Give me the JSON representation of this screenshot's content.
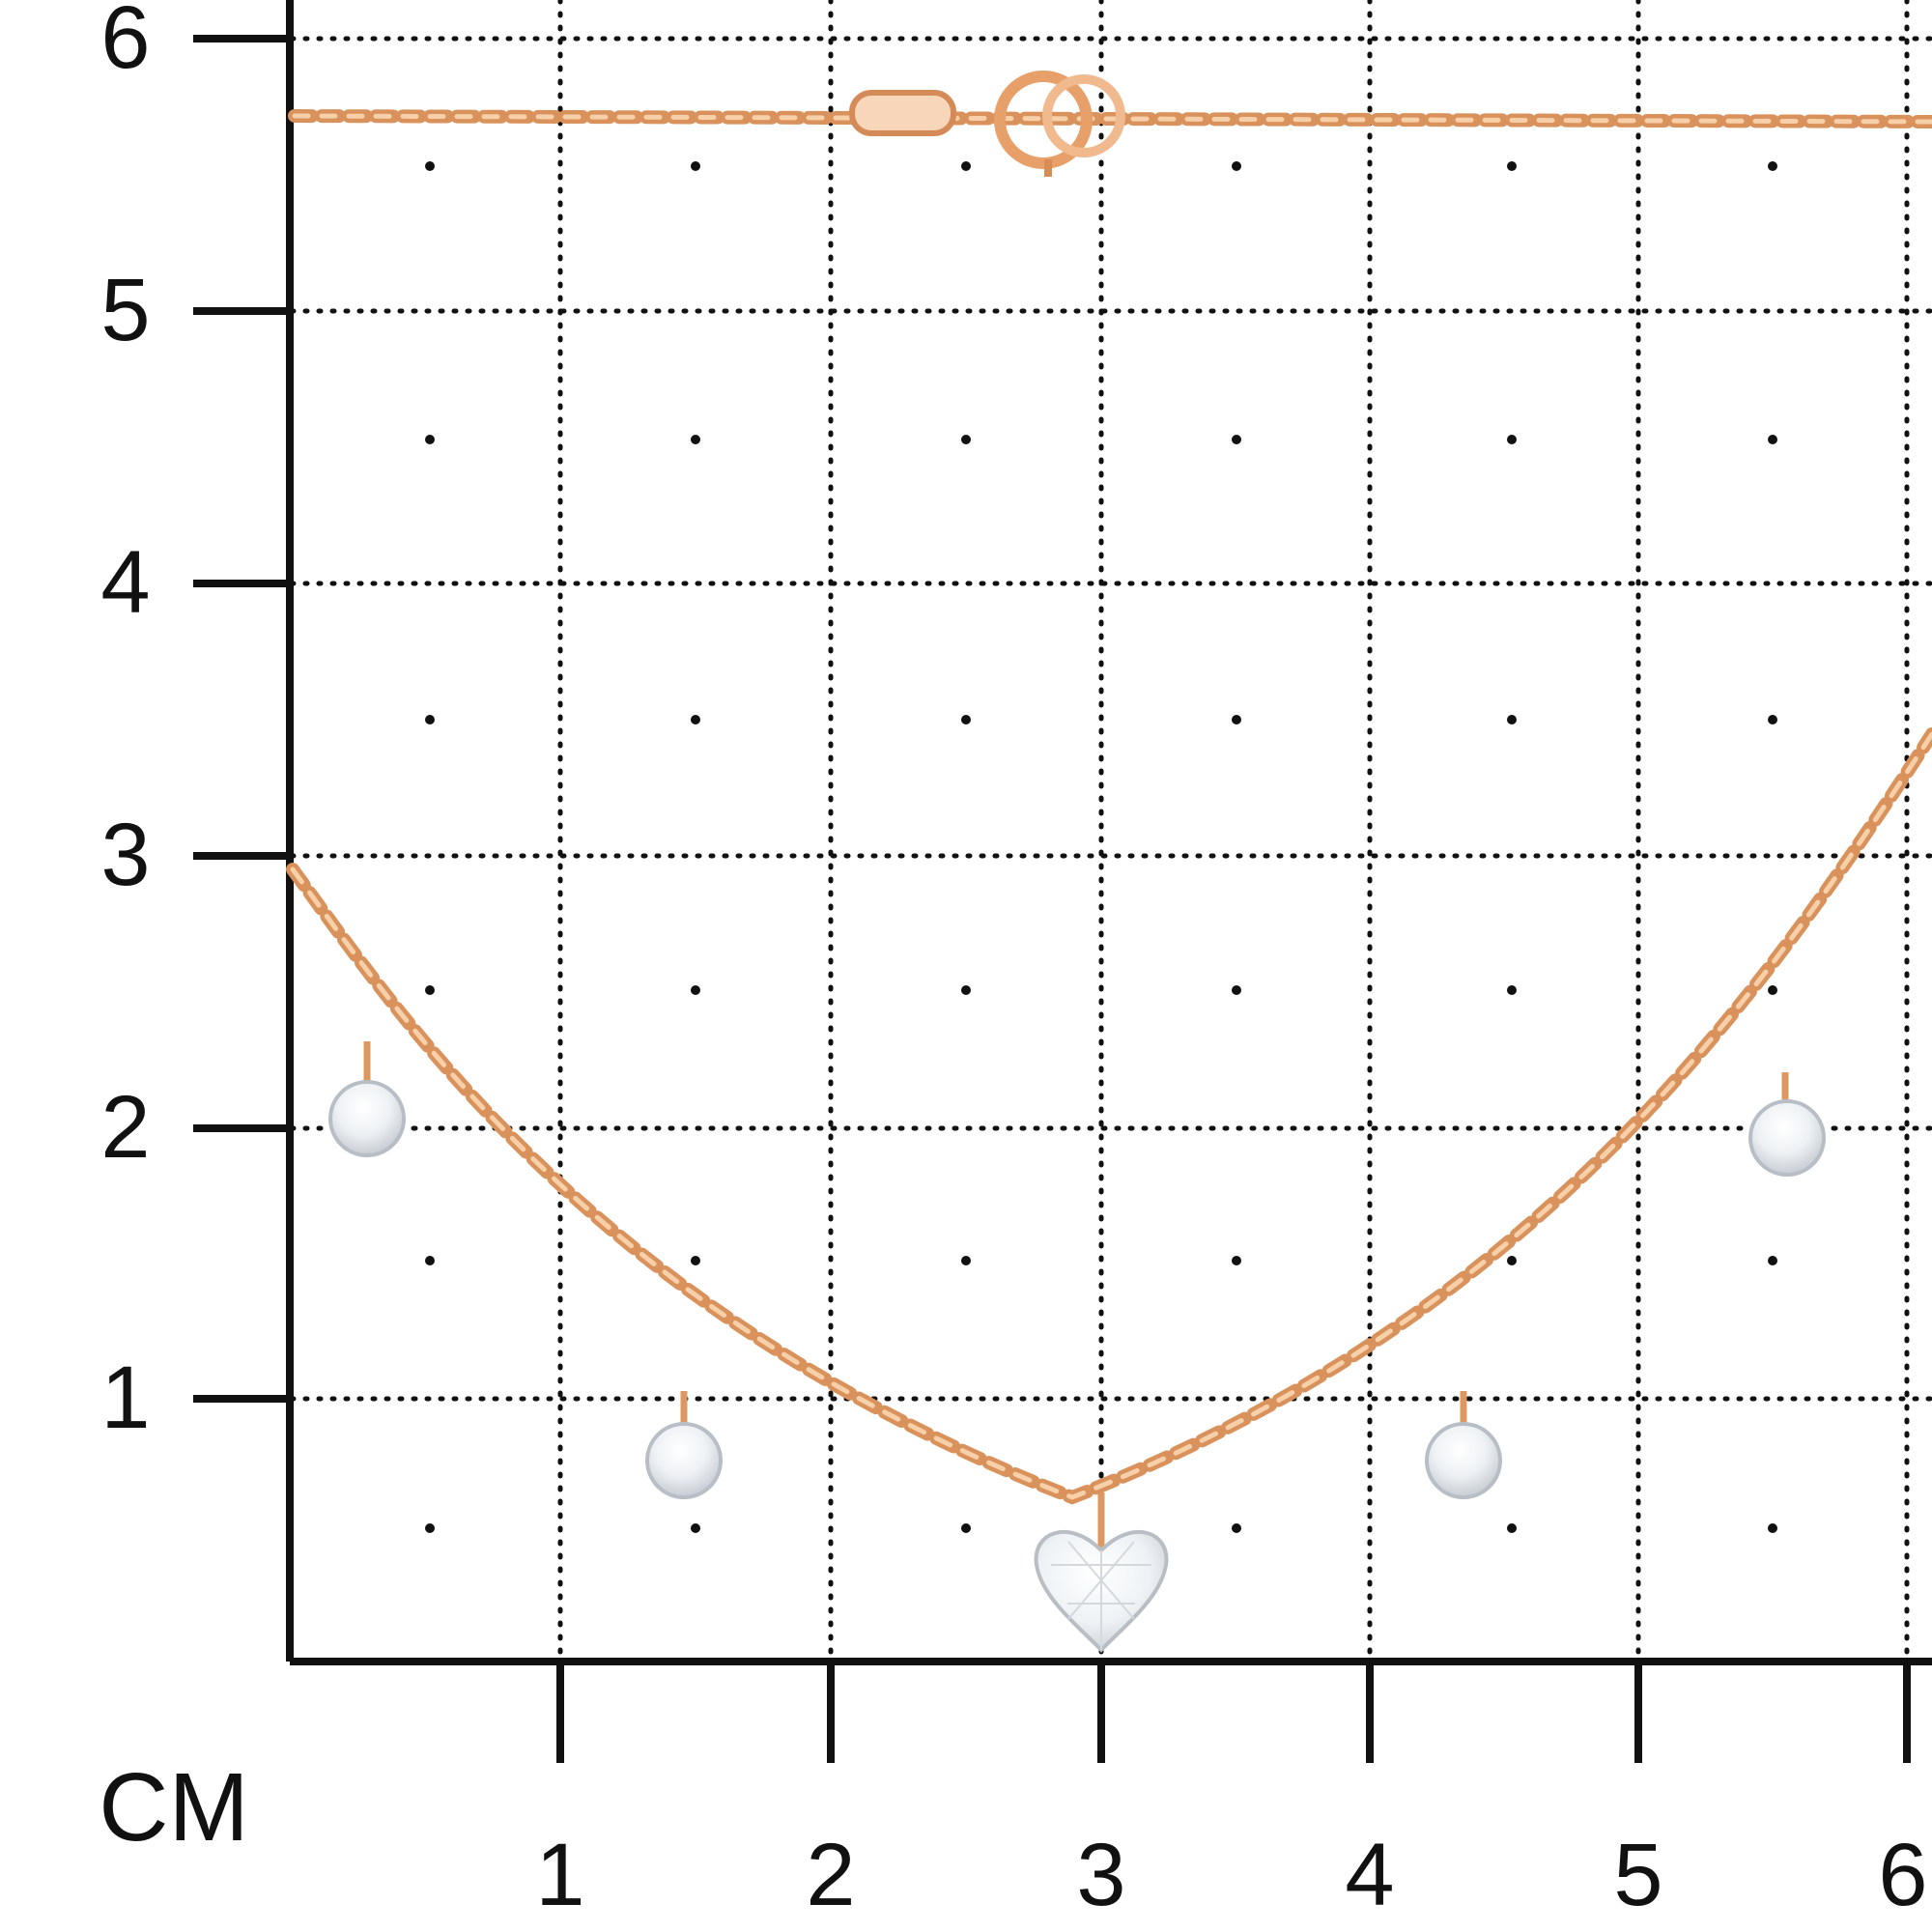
{
  "unit_label": "CM",
  "y_axis": {
    "labels": [
      "6",
      "5",
      "4",
      "3",
      "2",
      "1"
    ]
  },
  "x_axis": {
    "labels": [
      "1",
      "2",
      "3",
      "4",
      "5",
      "6"
    ]
  },
  "colors": {
    "grid": "#111111",
    "chain": "#f2b98a",
    "chain_shadow": "#d9925b",
    "stone": "#f4f6f8",
    "stone_edge": "#b8bec6"
  },
  "product": {
    "type": "necklace with heart and round stones",
    "scale": "centimeter grid"
  }
}
